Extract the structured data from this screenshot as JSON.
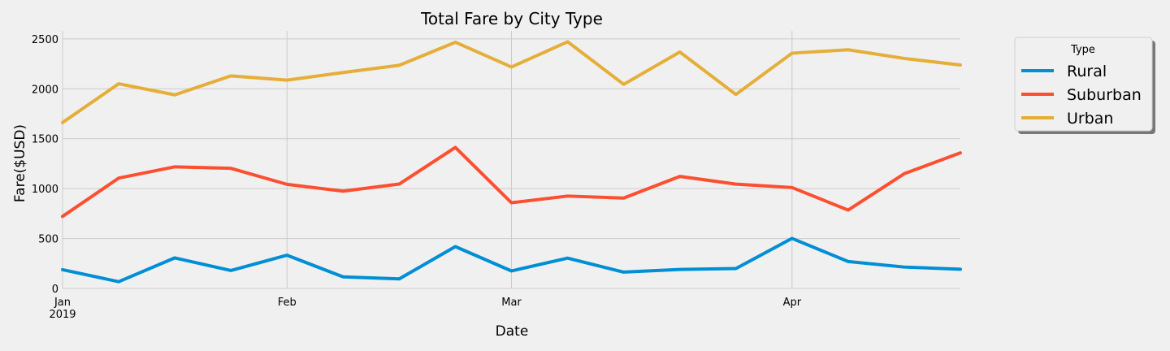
{
  "chart_data": {
    "type": "line",
    "title": "Total Fare by City Type",
    "xlabel": "Date",
    "ylabel": "Fare($USD)",
    "ylim": [
      0,
      2580
    ],
    "xlim": [
      "2019-01-06",
      "2019-04-28"
    ],
    "x": [
      "2019-01-06",
      "2019-01-13",
      "2019-01-20",
      "2019-01-27",
      "2019-02-03",
      "2019-02-10",
      "2019-02-17",
      "2019-02-24",
      "2019-03-03",
      "2019-03-10",
      "2019-03-17",
      "2019-03-24",
      "2019-03-31",
      "2019-04-07",
      "2019-04-14",
      "2019-04-21",
      "2019-04-28"
    ],
    "y_ticks": [
      0,
      500,
      1000,
      1500,
      2000,
      2500
    ],
    "x_ticks": [
      {
        "date": "2019-01-06",
        "label": "Jan",
        "sublabel": "2019"
      },
      {
        "date": "2019-02-03",
        "label": "Feb"
      },
      {
        "date": "2019-03-03",
        "label": "Mar"
      },
      {
        "date": "2019-04-07",
        "label": "Apr"
      }
    ],
    "legend": {
      "title": "Type",
      "placement": "outside-right-top"
    },
    "grid": true,
    "series": [
      {
        "name": "Rural",
        "color": "#008fd5",
        "values": [
          187.92,
          67.65,
          306.0,
          179.69,
          333.08,
          115.8,
          95.82,
          419.06,
          175.14,
          303.94,
          163.39,
          189.76,
          199.42,
          501.24,
          269.79,
          214.14,
          191.85
        ]
      },
      {
        "name": "Suburban",
        "color": "#fc4f30",
        "values": [
          721.6,
          1105.13,
          1218.2,
          1203.28,
          1042.79,
          974.34,
          1045.5,
          1412.74,
          858.46,
          925.27,
          905.2,
          1122.2,
          1045.06,
          1010.73,
          784.82,
          1149.27,
          1357.75
        ]
      },
      {
        "name": "Urban",
        "color": "#e5ae38",
        "values": [
          1661.68,
          2050.43,
          1939.02,
          2129.51,
          2086.94,
          2162.64,
          2235.07,
          2466.29,
          2218.2,
          2470.93,
          2044.42,
          2368.37,
          1942.77,
          2356.7,
          2390.72,
          2303.8,
          2238.29
        ]
      }
    ]
  }
}
